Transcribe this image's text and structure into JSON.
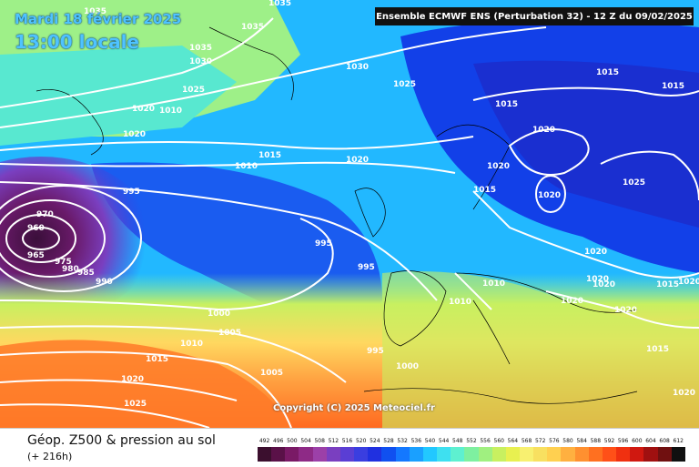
{
  "header": {
    "date": "Mardi 18 février 2025",
    "local_time": "13:00 locale",
    "model_run": "Ensemble ECMWF ENS  (Perturbation 32)  -  12 Z du 09/02/2025"
  },
  "map": {
    "copyright": "Copyright (C) 2025 Meteociel.fr",
    "pressure_labels": [
      "1035",
      "1035",
      "1035",
      "1030",
      "1030",
      "1035",
      "1025",
      "1025",
      "1020",
      "1010",
      "1020",
      "1015",
      "1010",
      "1020",
      "995",
      "970",
      "960",
      "965",
      "975",
      "980",
      "985",
      "990",
      "995",
      "995",
      "1000",
      "1005",
      "1010",
      "1015",
      "1020",
      "1025",
      "1005",
      "995",
      "1000",
      "1010",
      "1010",
      "1015",
      "1020",
      "1015",
      "1015",
      "1020",
      "1020",
      "1025",
      "1015",
      "1020",
      "1020",
      "1020",
      "1020",
      "1015",
      "1020",
      "1015",
      "1020",
      "1020"
    ]
  },
  "footer": {
    "field_title": "Géop. Z500 & pression au sol",
    "forecast_hour": "(+ 216h)"
  },
  "legend": {
    "unit_values": [
      "492",
      "496",
      "500",
      "504",
      "508",
      "512",
      "516",
      "520",
      "524",
      "528",
      "532",
      "536",
      "540",
      "544",
      "548",
      "552",
      "556",
      "560",
      "564",
      "568",
      "572",
      "576",
      "580",
      "584",
      "588",
      "592",
      "596",
      "600",
      "604",
      "608",
      "612"
    ],
    "colors": [
      "#3b0f2e",
      "#5a1148",
      "#7a1a66",
      "#8e2a86",
      "#9c40a8",
      "#7a3fc0",
      "#5a3ed4",
      "#3a3ee0",
      "#2030e0",
      "#1050f0",
      "#1478ff",
      "#1aa0ff",
      "#22c8ff",
      "#3ee0f0",
      "#5ef0d0",
      "#7ef0a0",
      "#a0f080",
      "#c8f060",
      "#e8f050",
      "#f8f070",
      "#f8e060",
      "#ffd050",
      "#ffb040",
      "#ff9030",
      "#ff7020",
      "#ff5018",
      "#f03010",
      "#d01810",
      "#a01010",
      "#701010",
      "#101010"
    ]
  }
}
